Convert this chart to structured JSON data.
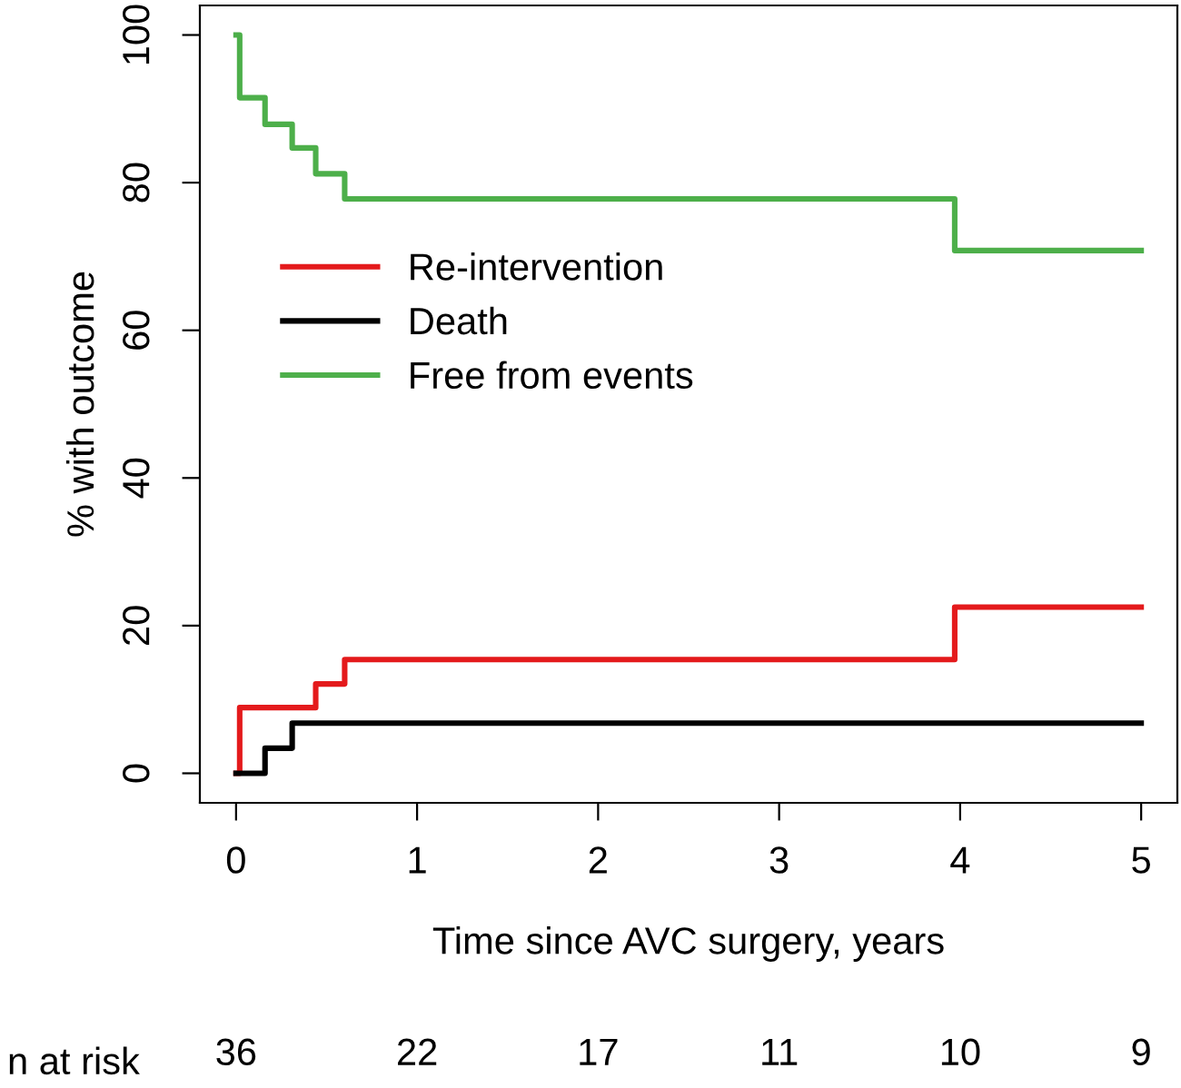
{
  "chart_data": {
    "type": "step",
    "xlabel": "Time since AVC surgery, years",
    "ylabel": "% with outcome",
    "xlim": [
      -0.2,
      5.2
    ],
    "ylim": [
      -4,
      104
    ],
    "xticks": [
      0,
      1,
      2,
      3,
      4,
      5
    ],
    "yticks": [
      0,
      20,
      40,
      60,
      80,
      100
    ],
    "grid": false,
    "legend": "left",
    "line_style": "solid",
    "marker": "none",
    "series": [
      {
        "name": "Re-intervention",
        "color": "#e41a1c",
        "x": [
          0,
          0.02,
          0.44,
          0.6,
          3.97,
          5
        ],
        "values": [
          0,
          8.9,
          12.1,
          15.4,
          22.5,
          22.5
        ]
      },
      {
        "name": "Death",
        "color": "#000000",
        "x": [
          0,
          0.16,
          0.31,
          5
        ],
        "values": [
          0,
          3.4,
          6.8,
          6.8
        ]
      },
      {
        "name": "Free from events",
        "color": "#4daf4a",
        "x": [
          0,
          0.02,
          0.16,
          0.31,
          0.44,
          0.6,
          3.97,
          5
        ],
        "values": [
          100,
          91.5,
          87.9,
          84.7,
          81.2,
          77.8,
          70.8,
          70.8
        ]
      }
    ],
    "annotations": [
      "n at risk",
      "36",
      "22",
      "17",
      "11",
      "10",
      "9"
    ]
  }
}
